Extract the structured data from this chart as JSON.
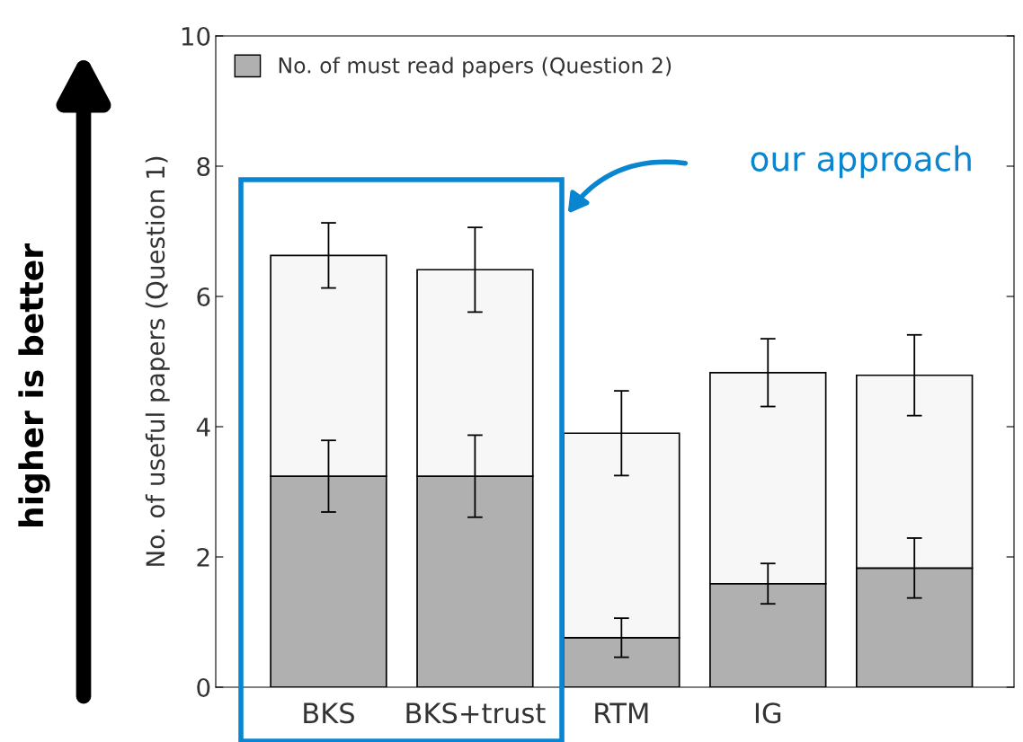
{
  "chart_data": {
    "type": "bar",
    "stacked": true,
    "ylabel": "No. of useful papers (Question 1)",
    "categories": [
      "BKS",
      "BKS+trust",
      "RTM",
      "IG",
      null
    ],
    "series": [
      {
        "name": "No. of must read papers (Question 2)",
        "color": "#b0b0b0",
        "values": [
          3.24,
          3.24,
          0.76,
          1.59,
          1.83
        ],
        "errors": [
          0.55,
          0.63,
          0.3,
          0.31,
          0.46
        ]
      },
      {
        "color": "#f7f7f7",
        "values": [
          3.39,
          3.17,
          3.14,
          3.24,
          2.96
        ],
        "errors": [
          0.5,
          0.65,
          0.65,
          0.52,
          0.62
        ]
      }
    ],
    "ylim": [
      0,
      10
    ],
    "yticks": [
      0,
      2,
      4,
      6,
      8,
      10
    ],
    "legend": "top left",
    "grid": false,
    "annotations": [
      "our approach",
      "higher is better"
    ]
  }
}
